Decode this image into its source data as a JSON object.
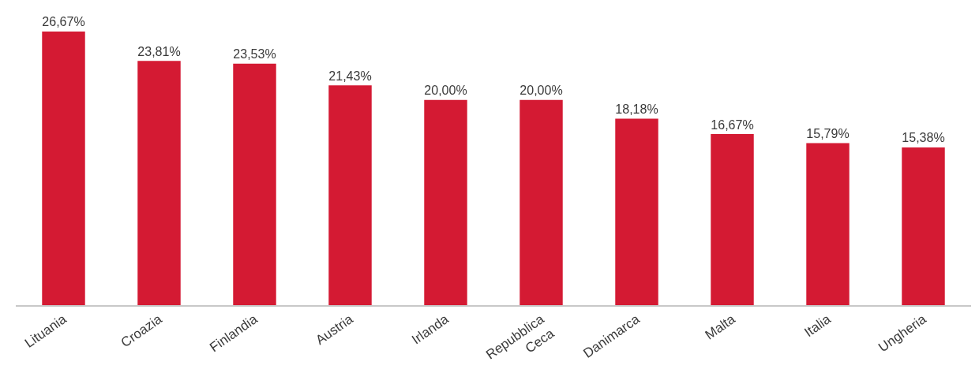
{
  "chart_data": {
    "type": "bar",
    "categories": [
      "Lituania",
      "Croazia",
      "Finlandia",
      "Austria",
      "Irlanda",
      "Repubblica Ceca",
      "Danimarca",
      "Malta",
      "Italia",
      "Ungheria"
    ],
    "values": [
      26.67,
      23.81,
      23.53,
      21.43,
      20.0,
      20.0,
      18.18,
      16.67,
      15.79,
      15.38
    ],
    "value_labels": [
      "26,67%",
      "23,81%",
      "23,53%",
      "21,43%",
      "20,00%",
      "20,00%",
      "18,18%",
      "16,67%",
      "15,79%",
      "15,38%"
    ],
    "color": "#d41a33",
    "legend": false
  }
}
